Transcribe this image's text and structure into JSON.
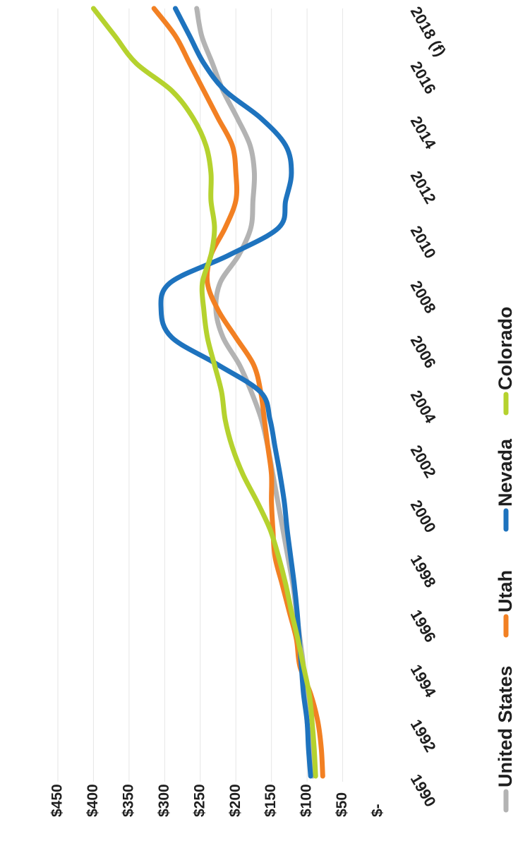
{
  "chart_data": {
    "type": "line",
    "title": "",
    "xlabel": "",
    "ylabel": "",
    "x": [
      "1990",
      "1991",
      "1992",
      "1993",
      "1994",
      "1995",
      "1996",
      "1997",
      "1998",
      "1999",
      "2000",
      "2001",
      "2002",
      "2003",
      "2004",
      "2005",
      "2006",
      "2007",
      "2008",
      "2009",
      "2010",
      "2011",
      "2012",
      "2013",
      "2014",
      "2015",
      "2016",
      "2017",
      "2018 (f)"
    ],
    "x_tick_labels": [
      "1990",
      "1992",
      "1994",
      "1996",
      "1998",
      "2000",
      "2002",
      "2004",
      "2006",
      "2008",
      "2010",
      "2012",
      "2014",
      "2016",
      "2018 (f)"
    ],
    "y_tick_labels": [
      "$-",
      "$50",
      "$100",
      "$150",
      "$200",
      "$250",
      "$300",
      "$350",
      "$400",
      "$450"
    ],
    "ylim": [
      0,
      450
    ],
    "grid": true,
    "legend_position": "bottom",
    "series": [
      {
        "name": "United States",
        "color": "#b3b3b3",
        "values": [
          92,
          96,
          100,
          103,
          105,
          110,
          115,
          120,
          127,
          134,
          141,
          148,
          155,
          164,
          178,
          195,
          218,
          228,
          222,
          196,
          179,
          176,
          174,
          180,
          198,
          218,
          233,
          248,
          255
        ]
      },
      {
        "name": "Utah",
        "color": "#f28023",
        "values": [
          78,
          80,
          85,
          95,
          110,
          115,
          125,
          135,
          145,
          148,
          150,
          150,
          155,
          160,
          165,
          175,
          200,
          225,
          240,
          235,
          215,
          200,
          200,
          205,
          225,
          245,
          265,
          285,
          315
        ]
      },
      {
        "name": "Nevada",
        "color": "#1e73be",
        "values": [
          95,
          98,
          100,
          105,
          108,
          111,
          114,
          118,
          123,
          128,
          132,
          138,
          145,
          152,
          165,
          225,
          290,
          305,
          292,
          210,
          140,
          130,
          122,
          130,
          165,
          215,
          245,
          265,
          285
        ]
      },
      {
        "name": "Colorado",
        "color": "#b5d22e",
        "values": [
          88,
          90,
          93,
          97,
          105,
          113,
          122,
          130,
          140,
          152,
          170,
          190,
          205,
          215,
          220,
          230,
          240,
          245,
          247,
          235,
          230,
          235,
          235,
          242,
          260,
          290,
          340,
          370,
          400
        ]
      }
    ]
  }
}
